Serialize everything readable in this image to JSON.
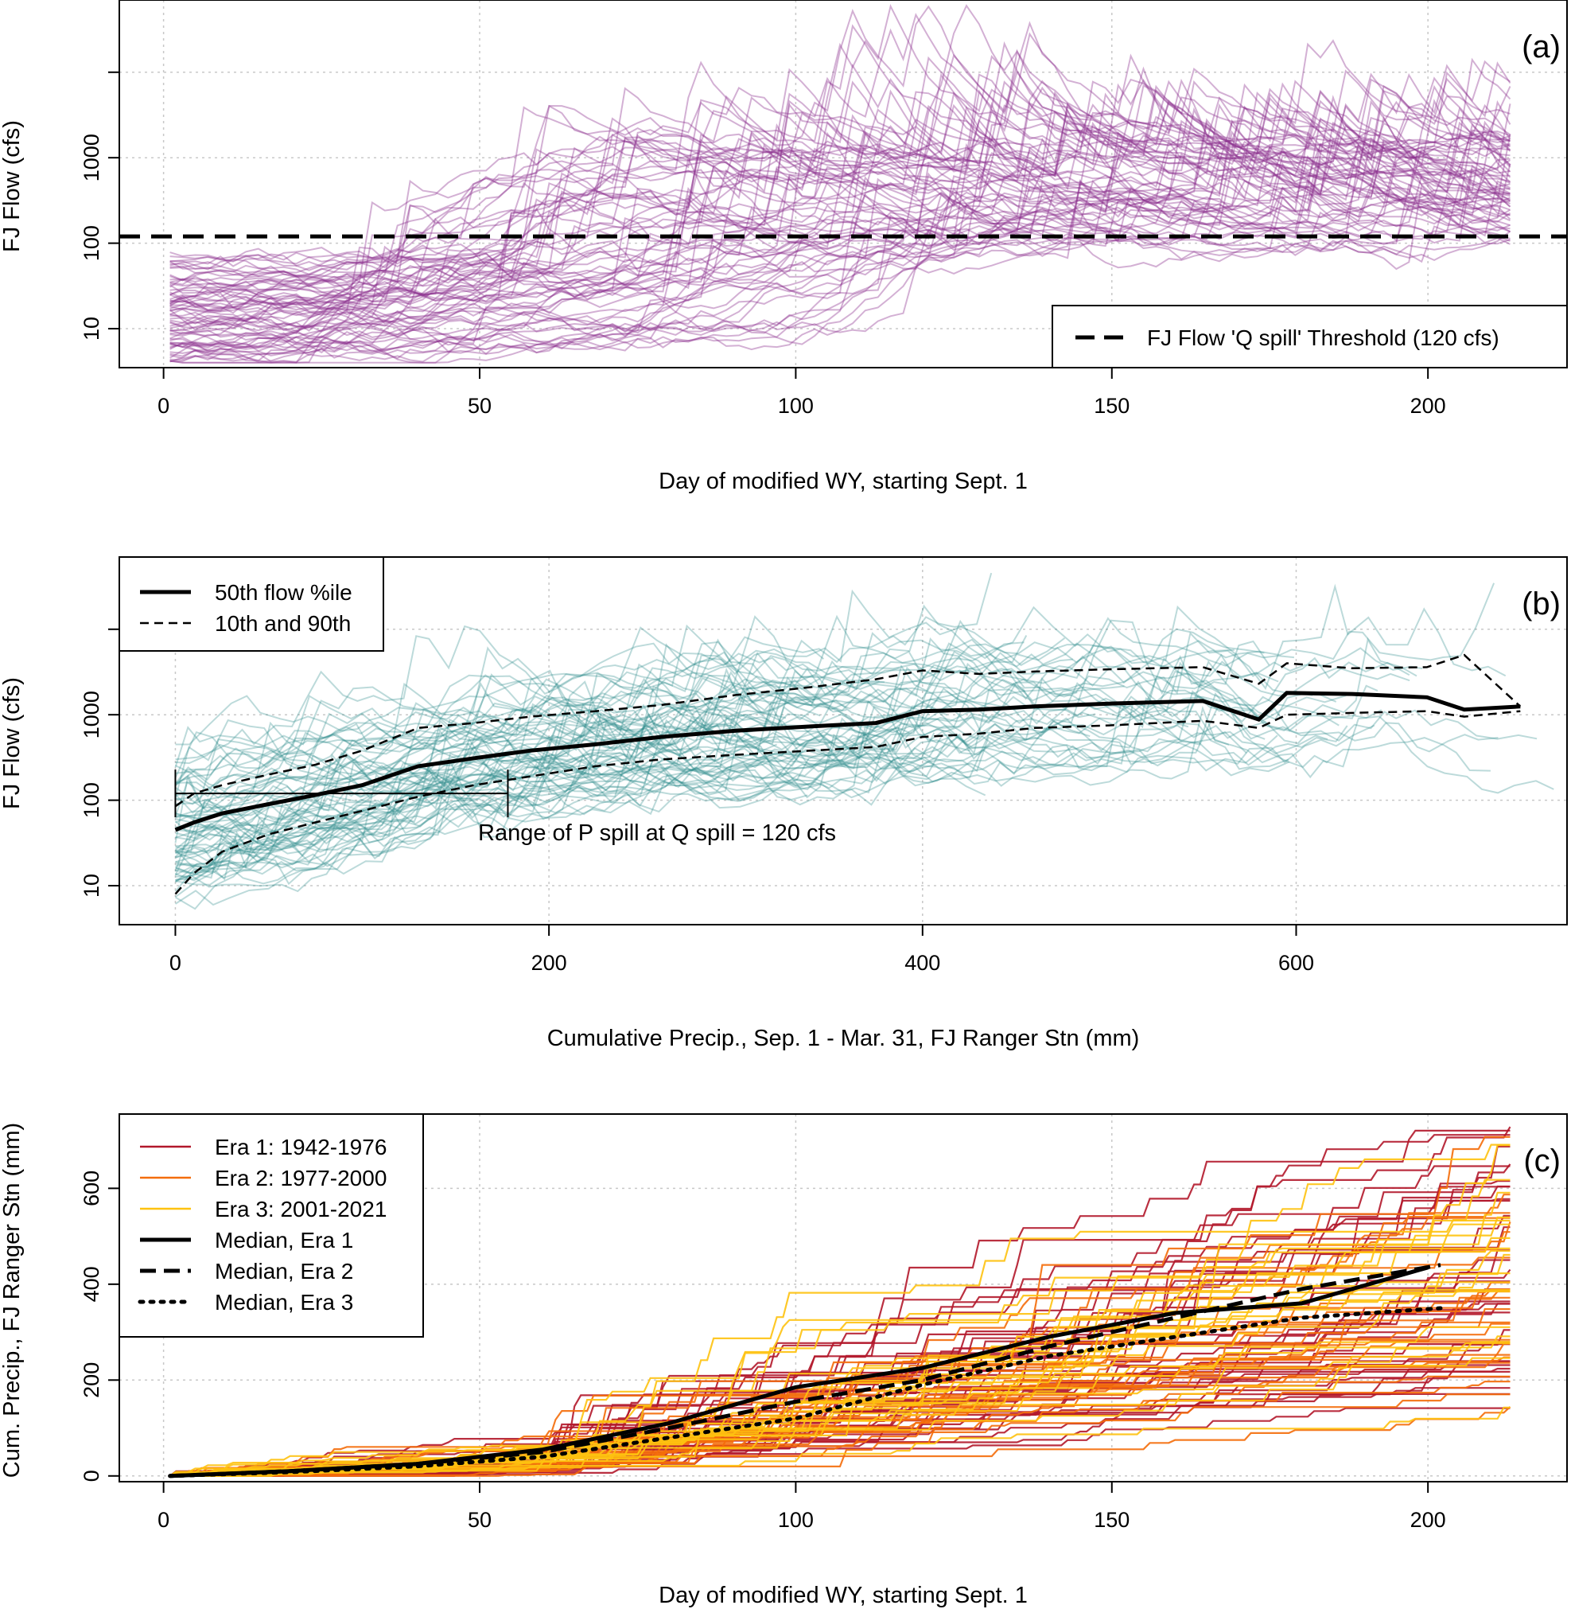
{
  "chart_data": [
    {
      "type": "line",
      "panel_label": "(a)",
      "xlabel": "Day of modified WY, starting Sept. 1",
      "ylabel": "FJ Flow (cfs)",
      "x_ticks": [
        "0",
        "50",
        "100",
        "150",
        "200"
      ],
      "y_ticks": [
        "10",
        "100",
        "1000"
      ],
      "xlim": [
        -7,
        222
      ],
      "ylim": [
        3.5,
        70000
      ],
      "y_scale": "log",
      "grid": true,
      "line_color": "#8b2f8f",
      "series_description": "many individual water-year hydrographs (translucent purple), days 1-213",
      "threshold": {
        "value": 120,
        "style": "dashed",
        "label": "FJ Flow 'Q spill' Threshold (120 cfs)"
      },
      "legend_position": "bottom-right"
    },
    {
      "type": "line",
      "panel_label": "(b)",
      "xlabel": "Cumulative Precip., Sep. 1 - Mar. 31, FJ Ranger Stn (mm)",
      "ylabel": "FJ Flow (cfs)",
      "x_ticks": [
        "0",
        "200",
        "400",
        "600"
      ],
      "y_ticks": [
        "10",
        "100",
        "1000"
      ],
      "xlim": [
        -30,
        745
      ],
      "ylim": [
        3.5,
        70000
      ],
      "y_scale": "log",
      "grid": true,
      "line_color": "#2e8b8b",
      "legend": [
        "50th flow %ile",
        "10th and 90th"
      ],
      "legend_position": "top-left",
      "annotation": "Range of P spill at Q spill = 120 cfs",
      "p_spill_range": [
        0,
        178
      ],
      "percentiles": {
        "x": [
          0,
          10,
          25,
          50,
          75,
          100,
          130,
          160,
          190,
          225,
          260,
          300,
          340,
          375,
          400,
          430,
          460,
          500,
          550,
          580,
          595,
          630,
          670,
          690,
          720
        ],
        "p50": [
          45,
          55,
          70,
          90,
          115,
          150,
          250,
          310,
          380,
          450,
          550,
          650,
          730,
          800,
          1100,
          1150,
          1250,
          1350,
          1450,
          880,
          1800,
          1750,
          1600,
          1150,
          1250
        ],
        "p10": [
          8,
          14,
          25,
          40,
          55,
          75,
          110,
          150,
          190,
          250,
          300,
          340,
          380,
          420,
          550,
          600,
          700,
          750,
          850,
          700,
          1000,
          1050,
          1100,
          950,
          1100
        ],
        "p90": [
          85,
          120,
          150,
          200,
          260,
          380,
          700,
          800,
          950,
          1100,
          1300,
          1700,
          2100,
          2600,
          3300,
          3000,
          3200,
          3400,
          3600,
          2300,
          4000,
          3500,
          3600,
          5000,
          1250
        ]
      }
    },
    {
      "type": "line",
      "panel_label": "(c)",
      "xlabel": "Day of modified WY, starting Sept. 1",
      "ylabel": "Cum. Precip., FJ Ranger Stn (mm)",
      "x_ticks": [
        "0",
        "50",
        "100",
        "150",
        "200"
      ],
      "y_ticks": [
        "0",
        "200",
        "400",
        "600"
      ],
      "xlim": [
        -7,
        222
      ],
      "ylim": [
        -12,
        755
      ],
      "grid": true,
      "legend": [
        "Era 1: 1942-1976",
        "Era 2: 1977-2000",
        "Era 3: 2001-2021",
        "Median, Era 1",
        "Median, Era 2",
        "Median, Era 3"
      ],
      "legend_position": "top-left",
      "era_colors": {
        "era1": "#b2182b",
        "era2": "#f46d0a",
        "era3": "#fec20f"
      },
      "series": [
        {
          "name": "Median, Era 1",
          "x": [
            1,
            20,
            40,
            60,
            80,
            100,
            120,
            140,
            160,
            180,
            200
          ],
          "values": [
            0,
            10,
            25,
            55,
            110,
            185,
            225,
            290,
            340,
            360,
            435
          ]
        },
        {
          "name": "Median, Era 2",
          "x": [
            1,
            20,
            40,
            60,
            80,
            100,
            120,
            140,
            160,
            180,
            202
          ],
          "values": [
            0,
            10,
            25,
            50,
            100,
            155,
            200,
            270,
            330,
            390,
            440
          ]
        },
        {
          "name": "Median, Era 3",
          "x": [
            1,
            20,
            40,
            60,
            80,
            100,
            120,
            140,
            160,
            180,
            202
          ],
          "values": [
            0,
            8,
            20,
            40,
            80,
            120,
            190,
            250,
            290,
            330,
            350
          ]
        }
      ]
    }
  ]
}
